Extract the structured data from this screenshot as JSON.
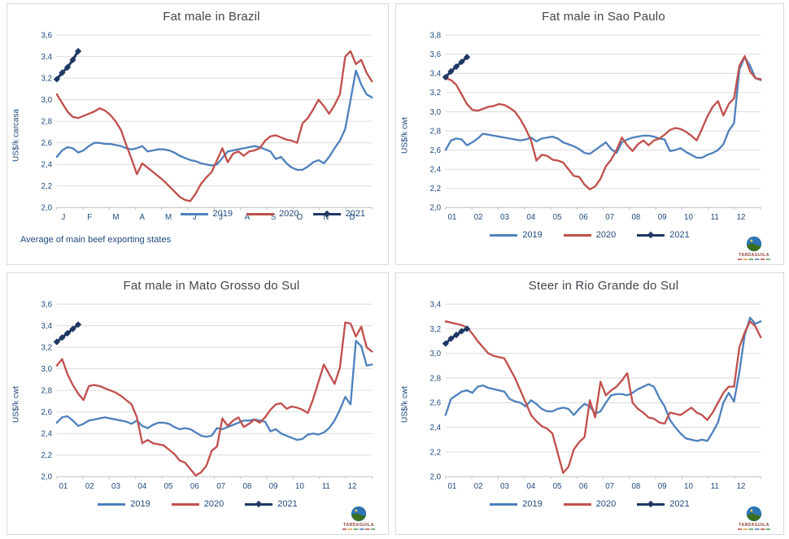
{
  "legend_note": "shared legend labels live inside each chart's series[].name",
  "logo": {
    "text": "TARDAGUILA"
  },
  "colors": {
    "series_2019": "#4f81bd",
    "series_2020": "#c0504d",
    "series_2021": "#1f3864",
    "gridline": "#d9d9d9",
    "axis_line": "#bfbfbf",
    "axis_text": "#1f497d",
    "title_text": "#44444c"
  },
  "chart_data": [
    {
      "type": "line",
      "title": "Fat male in Brazil",
      "ylabel": "US$/k carcasa",
      "footnote": "Average of main beef exporting states",
      "ylim": [
        2.0,
        3.6
      ],
      "ytick_labels": [
        "2,0",
        "2,2",
        "2,4",
        "2,6",
        "2,8",
        "3,0",
        "3,2",
        "3,4",
        "3,6"
      ],
      "categories": [
        "J",
        "F",
        "M",
        "A",
        "M",
        "J",
        "J",
        "A",
        "S",
        "O",
        "N",
        "D"
      ],
      "legend_position": "inside-bottom-right",
      "grid": true,
      "series": [
        {
          "name": "2019",
          "color": "#4f81bd",
          "values": [
            2.47,
            2.53,
            2.56,
            2.55,
            2.51,
            2.53,
            2.57,
            2.6,
            2.6,
            2.59,
            2.59,
            2.58,
            2.57,
            2.55,
            2.54,
            2.55,
            2.57,
            2.52,
            2.53,
            2.54,
            2.54,
            2.53,
            2.51,
            2.48,
            2.46,
            2.44,
            2.43,
            2.41,
            2.4,
            2.39,
            2.4,
            2.46,
            2.52,
            2.53,
            2.54,
            2.55,
            2.56,
            2.57,
            2.56,
            2.54,
            2.52,
            2.45,
            2.47,
            2.41,
            2.37,
            2.35,
            2.35,
            2.38,
            2.42,
            2.44,
            2.41,
            2.47,
            2.55,
            2.62,
            2.73,
            3.0,
            3.27,
            3.14,
            3.05,
            3.02
          ]
        },
        {
          "name": "2020",
          "color": "#c0504d",
          "values": [
            3.05,
            2.97,
            2.89,
            2.84,
            2.83,
            2.85,
            2.87,
            2.89,
            2.92,
            2.9,
            2.86,
            2.8,
            2.72,
            2.58,
            2.45,
            2.31,
            2.41,
            2.37,
            2.33,
            2.29,
            2.25,
            2.2,
            2.15,
            2.1,
            2.07,
            2.06,
            2.13,
            2.22,
            2.28,
            2.33,
            2.44,
            2.55,
            2.42,
            2.5,
            2.52,
            2.48,
            2.52,
            2.53,
            2.55,
            2.62,
            2.66,
            2.67,
            2.65,
            2.63,
            2.62,
            2.6,
            2.78,
            2.83,
            2.91,
            3.0,
            2.94,
            2.87,
            2.95,
            3.05,
            3.4,
            3.45,
            3.33,
            3.37,
            3.25,
            3.17
          ]
        },
        {
          "name": "2021",
          "color": "#1f3864",
          "marker": "diamond",
          "values": [
            3.19,
            3.25,
            3.3,
            3.37,
            3.45
          ]
        }
      ]
    },
    {
      "type": "line",
      "title": "Fat male in Sao Paulo",
      "ylabel": "US$/k cwt",
      "ylim": [
        2.0,
        3.8
      ],
      "ytick_labels": [
        "2,0",
        "2,2",
        "2,4",
        "2,6",
        "2,8",
        "3,0",
        "3,2",
        "3,4",
        "3,6",
        "3,8"
      ],
      "categories": [
        "01",
        "02",
        "03",
        "04",
        "05",
        "06",
        "07",
        "08",
        "09",
        "10",
        "11",
        "12"
      ],
      "legend_position": "bottom-center",
      "grid": true,
      "series": [
        {
          "name": "2019",
          "color": "#4f81bd",
          "values": [
            2.6,
            2.7,
            2.72,
            2.71,
            2.65,
            2.68,
            2.72,
            2.77,
            2.76,
            2.75,
            2.74,
            2.73,
            2.72,
            2.71,
            2.7,
            2.71,
            2.73,
            2.69,
            2.72,
            2.73,
            2.74,
            2.72,
            2.68,
            2.66,
            2.64,
            2.61,
            2.57,
            2.56,
            2.6,
            2.64,
            2.68,
            2.61,
            2.57,
            2.68,
            2.71,
            2.73,
            2.74,
            2.75,
            2.75,
            2.74,
            2.72,
            2.71,
            2.59,
            2.6,
            2.62,
            2.58,
            2.55,
            2.52,
            2.52,
            2.55,
            2.57,
            2.6,
            2.66,
            2.8,
            2.88,
            3.44,
            3.57,
            3.48,
            3.35,
            3.33
          ]
        },
        {
          "name": "2020",
          "color": "#c0504d",
          "values": [
            3.35,
            3.33,
            3.28,
            3.18,
            3.08,
            3.02,
            3.01,
            3.03,
            3.05,
            3.06,
            3.08,
            3.07,
            3.04,
            3.0,
            2.92,
            2.82,
            2.7,
            2.49,
            2.55,
            2.54,
            2.5,
            2.49,
            2.47,
            2.4,
            2.33,
            2.32,
            2.24,
            2.19,
            2.22,
            2.3,
            2.43,
            2.5,
            2.6,
            2.73,
            2.65,
            2.59,
            2.66,
            2.7,
            2.65,
            2.7,
            2.72,
            2.76,
            2.81,
            2.83,
            2.82,
            2.79,
            2.75,
            2.7,
            2.82,
            2.95,
            3.05,
            3.11,
            2.96,
            3.08,
            3.14,
            3.48,
            3.58,
            3.42,
            3.35,
            3.34
          ]
        },
        {
          "name": "2021",
          "color": "#1f3864",
          "marker": "diamond",
          "values": [
            3.36,
            3.42,
            3.47,
            3.52,
            3.57
          ]
        }
      ]
    },
    {
      "type": "line",
      "title": "Fat male in Mato Grosso do Sul",
      "ylabel": "US$/k cwt",
      "ylim": [
        2.0,
        3.6
      ],
      "ytick_labels": [
        "2,0",
        "2,2",
        "2,4",
        "2,6",
        "2,8",
        "3,0",
        "3,2",
        "3,4",
        "3,6"
      ],
      "categories": [
        "01",
        "02",
        "03",
        "04",
        "05",
        "06",
        "07",
        "08",
        "09",
        "10",
        "11",
        "12"
      ],
      "legend_position": "bottom-center",
      "grid": true,
      "series": [
        {
          "name": "2019",
          "color": "#4f81bd",
          "values": [
            2.5,
            2.55,
            2.56,
            2.52,
            2.47,
            2.49,
            2.52,
            2.53,
            2.54,
            2.55,
            2.54,
            2.53,
            2.52,
            2.51,
            2.49,
            2.52,
            2.47,
            2.45,
            2.48,
            2.5,
            2.5,
            2.49,
            2.46,
            2.44,
            2.45,
            2.44,
            2.41,
            2.38,
            2.37,
            2.38,
            2.45,
            2.44,
            2.46,
            2.48,
            2.5,
            2.52,
            2.52,
            2.53,
            2.52,
            2.51,
            2.42,
            2.44,
            2.4,
            2.38,
            2.36,
            2.34,
            2.35,
            2.39,
            2.4,
            2.39,
            2.41,
            2.45,
            2.52,
            2.62,
            2.74,
            2.67,
            3.26,
            3.21,
            3.03,
            3.04
          ]
        },
        {
          "name": "2020",
          "color": "#c0504d",
          "values": [
            3.03,
            3.09,
            2.95,
            2.85,
            2.77,
            2.71,
            2.84,
            2.85,
            2.84,
            2.82,
            2.8,
            2.78,
            2.75,
            2.71,
            2.67,
            2.55,
            2.31,
            2.34,
            2.31,
            2.3,
            2.29,
            2.25,
            2.21,
            2.15,
            2.13,
            2.07,
            2.01,
            2.04,
            2.1,
            2.24,
            2.28,
            2.54,
            2.47,
            2.52,
            2.55,
            2.46,
            2.49,
            2.53,
            2.5,
            2.55,
            2.62,
            2.67,
            2.68,
            2.63,
            2.65,
            2.64,
            2.62,
            2.59,
            2.72,
            2.88,
            3.04,
            2.95,
            2.86,
            3.01,
            3.43,
            3.42,
            3.3,
            3.39,
            3.2,
            3.16
          ]
        },
        {
          "name": "2021",
          "color": "#1f3864",
          "marker": "diamond",
          "values": [
            3.25,
            3.29,
            3.33,
            3.37,
            3.41
          ]
        }
      ]
    },
    {
      "type": "line",
      "title": "Steer in Rio Grande do Sul",
      "ylabel": "US$/k cwt",
      "ylim": [
        2.0,
        3.4
      ],
      "ytick_labels": [
        "2,0",
        "2,2",
        "2,4",
        "2,6",
        "2,8",
        "3,0",
        "3,2",
        "3,4"
      ],
      "categories": [
        "01",
        "02",
        "03",
        "04",
        "05",
        "06",
        "07",
        "08",
        "09",
        "10",
        "11",
        "12"
      ],
      "legend_position": "bottom-center",
      "grid": true,
      "series": [
        {
          "name": "2019",
          "color": "#4f81bd",
          "values": [
            2.5,
            2.63,
            2.66,
            2.69,
            2.7,
            2.68,
            2.73,
            2.74,
            2.72,
            2.71,
            2.7,
            2.69,
            2.63,
            2.61,
            2.6,
            2.57,
            2.62,
            2.59,
            2.55,
            2.53,
            2.53,
            2.55,
            2.56,
            2.55,
            2.5,
            2.55,
            2.59,
            2.57,
            2.51,
            2.53,
            2.6,
            2.66,
            2.67,
            2.67,
            2.66,
            2.68,
            2.71,
            2.73,
            2.75,
            2.73,
            2.64,
            2.57,
            2.46,
            2.4,
            2.35,
            2.31,
            2.3,
            2.29,
            2.3,
            2.29,
            2.36,
            2.44,
            2.6,
            2.68,
            2.61,
            2.85,
            3.15,
            3.29,
            3.24,
            3.26
          ]
        },
        {
          "name": "2020",
          "color": "#c0504d",
          "values": [
            3.26,
            3.25,
            3.24,
            3.23,
            3.21,
            3.16,
            3.1,
            3.05,
            3.0,
            2.98,
            2.97,
            2.96,
            2.88,
            2.8,
            2.7,
            2.6,
            2.5,
            2.45,
            2.41,
            2.39,
            2.35,
            2.19,
            2.03,
            2.08,
            2.22,
            2.28,
            2.32,
            2.62,
            2.48,
            2.77,
            2.66,
            2.7,
            2.73,
            2.78,
            2.84,
            2.6,
            2.55,
            2.52,
            2.48,
            2.47,
            2.44,
            2.43,
            2.52,
            2.51,
            2.5,
            2.53,
            2.56,
            2.52,
            2.5,
            2.46,
            2.52,
            2.6,
            2.68,
            2.73,
            2.73,
            3.05,
            3.17,
            3.26,
            3.22,
            3.13
          ]
        },
        {
          "name": "2021",
          "color": "#1f3864",
          "marker": "diamond",
          "values": [
            3.08,
            3.12,
            3.15,
            3.18,
            3.2
          ]
        }
      ]
    }
  ]
}
